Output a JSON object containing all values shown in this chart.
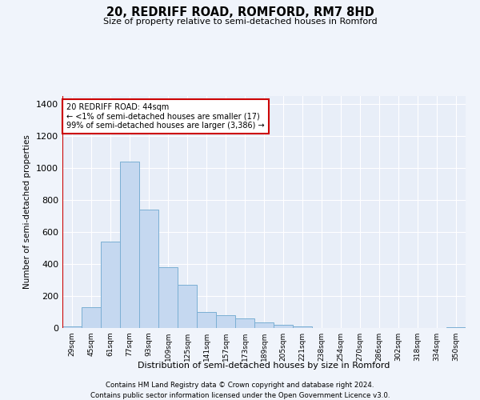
{
  "title": "20, REDRIFF ROAD, ROMFORD, RM7 8HD",
  "subtitle": "Size of property relative to semi-detached houses in Romford",
  "xlabel": "Distribution of semi-detached houses by size in Romford",
  "ylabel": "Number of semi-detached properties",
  "footnote1": "Contains HM Land Registry data © Crown copyright and database right 2024.",
  "footnote2": "Contains public sector information licensed under the Open Government Licence v3.0.",
  "annotation_title": "20 REDRIFF ROAD: 44sqm",
  "annotation_line1": "← <1% of semi-detached houses are smaller (17)",
  "annotation_line2": "99% of semi-detached houses are larger (3,386) →",
  "bar_color": "#c5d8f0",
  "bar_edge_color": "#7bafd4",
  "marker_color": "#cc0000",
  "categories": [
    "29sqm",
    "45sqm",
    "61sqm",
    "77sqm",
    "93sqm",
    "109sqm",
    "125sqm",
    "141sqm",
    "157sqm",
    "173sqm",
    "189sqm",
    "205sqm",
    "221sqm",
    "238sqm",
    "254sqm",
    "270sqm",
    "286sqm",
    "302sqm",
    "318sqm",
    "334sqm",
    "350sqm"
  ],
  "values": [
    10,
    130,
    540,
    1040,
    740,
    380,
    270,
    100,
    80,
    60,
    35,
    20,
    10,
    0,
    0,
    0,
    0,
    0,
    0,
    0,
    5
  ],
  "ylim": [
    0,
    1450
  ],
  "yticks": [
    0,
    200,
    400,
    600,
    800,
    1000,
    1200,
    1400
  ],
  "bg_color": "#f0f4fb",
  "plot_bg_color": "#e8eef8"
}
